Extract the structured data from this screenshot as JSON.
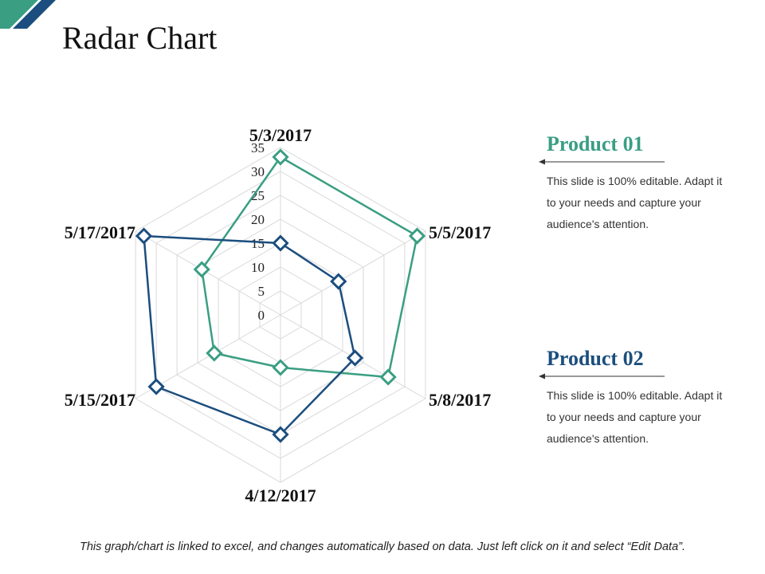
{
  "title": "Radar Chart",
  "colors": {
    "product01": "#3a9e82",
    "product02": "#1b4e7e",
    "grid": "#d9d9d9",
    "deco_green": "#3a9e82",
    "deco_blue": "#1b4e7e"
  },
  "legend": [
    {
      "title": "Product 01",
      "description": "This slide is 100% editable. Adapt it to your needs and capture your audience's attention."
    },
    {
      "title": "Product 02",
      "description": "This slide is 100% editable. Adapt it to your needs and capture your audience's attention."
    }
  ],
  "footer": "This graph/chart is linked to excel, and changes automatically based on data. Just left click on it and select “Edit Data”.",
  "chart_data": {
    "type": "radar",
    "categories": [
      "5/3/2017",
      "5/5/2017",
      "5/8/2017",
      "4/12/2017",
      "5/15/2017",
      "5/17/2017"
    ],
    "ticks": [
      0,
      5,
      10,
      15,
      20,
      25,
      30,
      35
    ],
    "rlim": [
      0,
      35
    ],
    "series": [
      {
        "name": "Product 01",
        "values": [
          33,
          33,
          26,
          11,
          16,
          19
        ]
      },
      {
        "name": "Product 02",
        "values": [
          15,
          14,
          18,
          25,
          30,
          33
        ]
      }
    ]
  }
}
